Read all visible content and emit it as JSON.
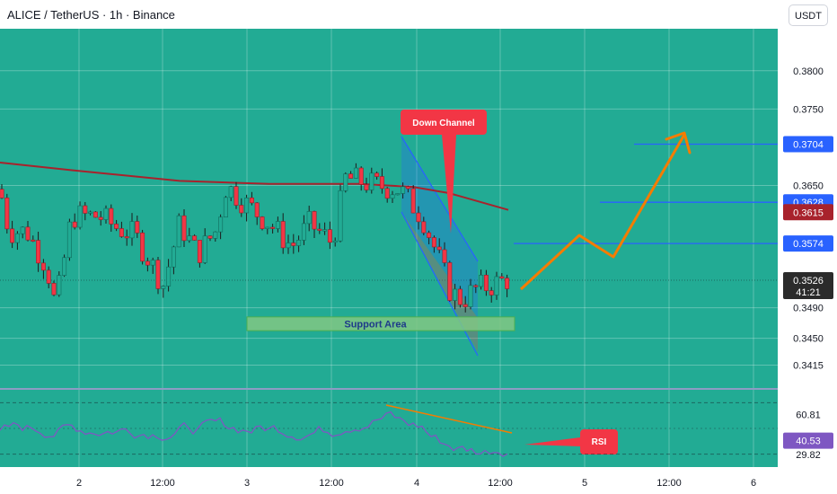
{
  "header": {
    "title": "ALICE / TetherUS · 1h · Binance",
    "currency_button": "USDT"
  },
  "chart_data": {
    "type": "candlestick",
    "price_axis": {
      "ticks": [
        "0.3800",
        "0.3750",
        "0.3650",
        "0.3490",
        "0.3450",
        "0.3415"
      ],
      "range": [
        0.3385,
        0.3855
      ]
    },
    "time_axis": {
      "labels": [
        "2",
        "12:00",
        "3",
        "12:00",
        "4",
        "12:00",
        "5",
        "12:00",
        "6"
      ]
    },
    "current_price": {
      "value": "0.3526",
      "countdown": "41:21",
      "color": "#2b2b2b"
    },
    "moving_average": {
      "value": "0.3615",
      "color": "#a8222c"
    },
    "levels": [
      {
        "value": 0.3704,
        "label": "0.3704",
        "color": "#2962ff"
      },
      {
        "value": 0.3628,
        "label": "0.3628",
        "color": "#2962ff"
      },
      {
        "value": 0.3574,
        "label": "0.3574",
        "color": "#2962ff"
      }
    ],
    "support_area": {
      "label": "Support Area",
      "low": 0.346,
      "high": 0.3478
    },
    "annotations": {
      "down_channel": "Down Channel",
      "rsi": "RSI"
    },
    "projection": {
      "color": "#f57c00"
    },
    "rsi": {
      "ticks": [
        "60.81",
        "29.82"
      ],
      "current": "40.53",
      "line_color": "#7e57c2",
      "range": [
        20,
        80
      ]
    },
    "colors": {
      "up": "#22ab94",
      "down": "#f23645",
      "pane": "#22ab94"
    }
  }
}
